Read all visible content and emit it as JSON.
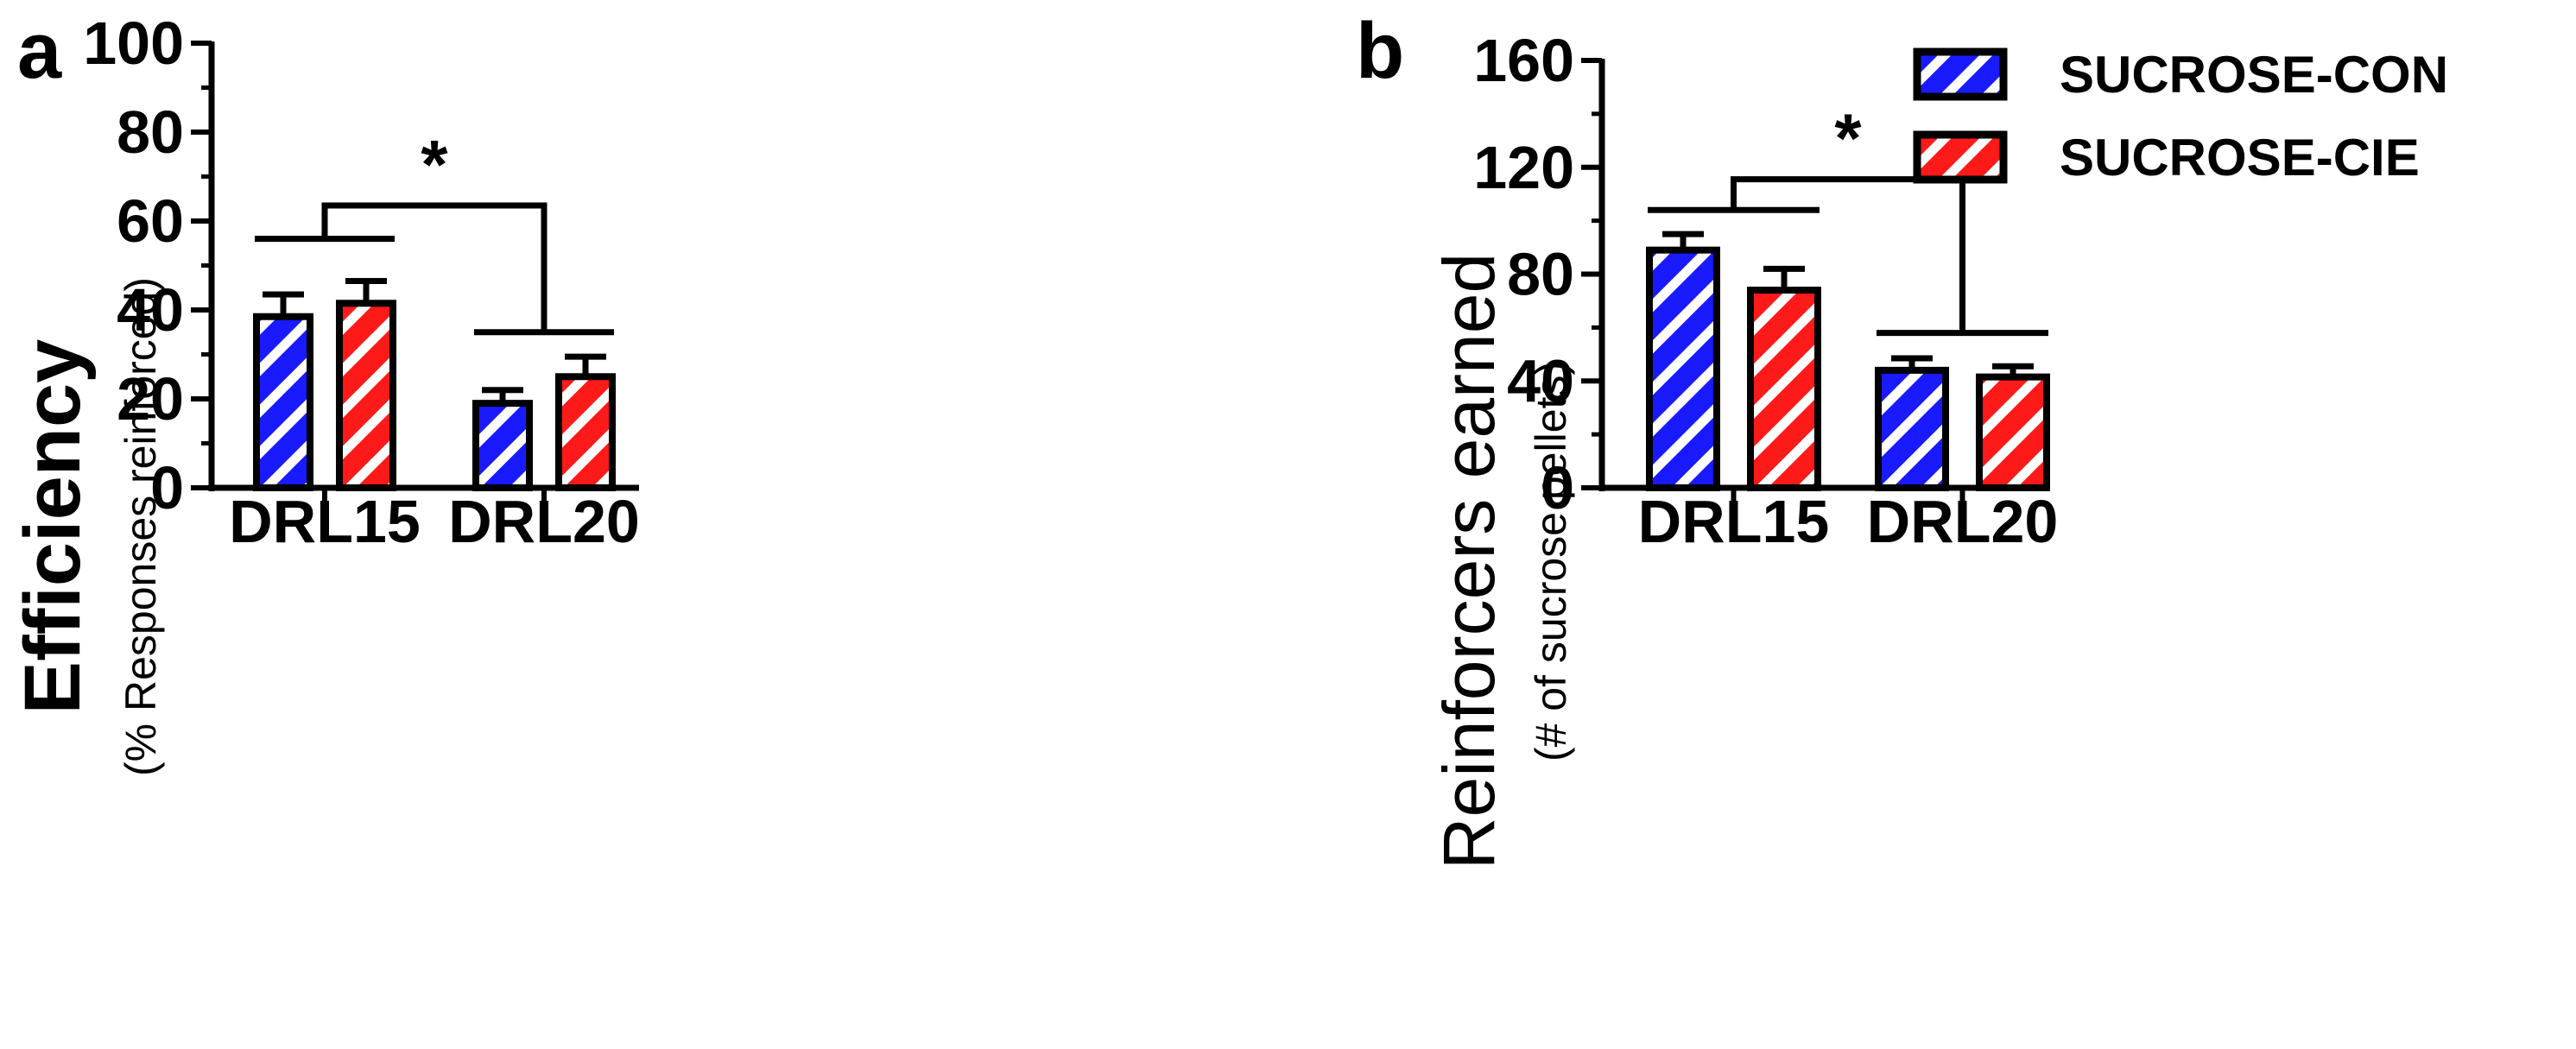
{
  "colors": {
    "con": "#1a1aff",
    "cie": "#ff1a1a",
    "stripe": "#ffffff",
    "axis": "#000000"
  },
  "chart_data": [
    {
      "type": "bar",
      "panel_label": "a",
      "ylabel": "Efficiency",
      "ylabel_sub": "(% Responses reinforced)",
      "ylim": [
        0,
        100
      ],
      "yticks": [
        "0",
        "20",
        "40",
        "60",
        "80",
        "100"
      ],
      "yticks_values": [
        0,
        20,
        40,
        60,
        80,
        100
      ],
      "minor_ticks": [
        10,
        30,
        50,
        70,
        90
      ],
      "categories": [
        "DRL15",
        "DRL20"
      ],
      "series": [
        {
          "name": "SUCROSE-CON",
          "values": [
            38.5,
            19.0
          ],
          "errors": [
            5.0,
            3.0
          ]
        },
        {
          "name": "SUCROSE-CIE",
          "values": [
            41.5,
            25.0
          ],
          "errors": [
            5.0,
            4.5
          ]
        }
      ],
      "significance": {
        "label": "*",
        "group_line_1": 56,
        "group_line_2": 35,
        "bracket_top": 63.5
      }
    },
    {
      "type": "bar",
      "panel_label": "b",
      "ylabel": "Reinforcers earned",
      "ylabel_sub": "(# of sucrose pellets)",
      "ylim": [
        0,
        160
      ],
      "yticks": [
        "0",
        "40",
        "80",
        "120",
        "160"
      ],
      "yticks_values": [
        0,
        40,
        80,
        120,
        160
      ],
      "minor_ticks": [
        20,
        60,
        100,
        140
      ],
      "categories": [
        "DRL15",
        "DRL20"
      ],
      "series": [
        {
          "name": "SUCROSE-CON",
          "values": [
            89,
            44
          ],
          "errors": [
            6,
            4.5
          ]
        },
        {
          "name": "SUCROSE-CIE",
          "values": [
            74,
            41.5
          ],
          "errors": [
            8,
            4
          ]
        }
      ],
      "significance": {
        "label": "*",
        "group_line_1": 104,
        "group_line_2": 58,
        "bracket_top": 115.5
      }
    }
  ],
  "legend": [
    {
      "label": "SUCROSE-CON",
      "series": "con"
    },
    {
      "label": "SUCROSE-CIE",
      "series": "cie"
    }
  ]
}
